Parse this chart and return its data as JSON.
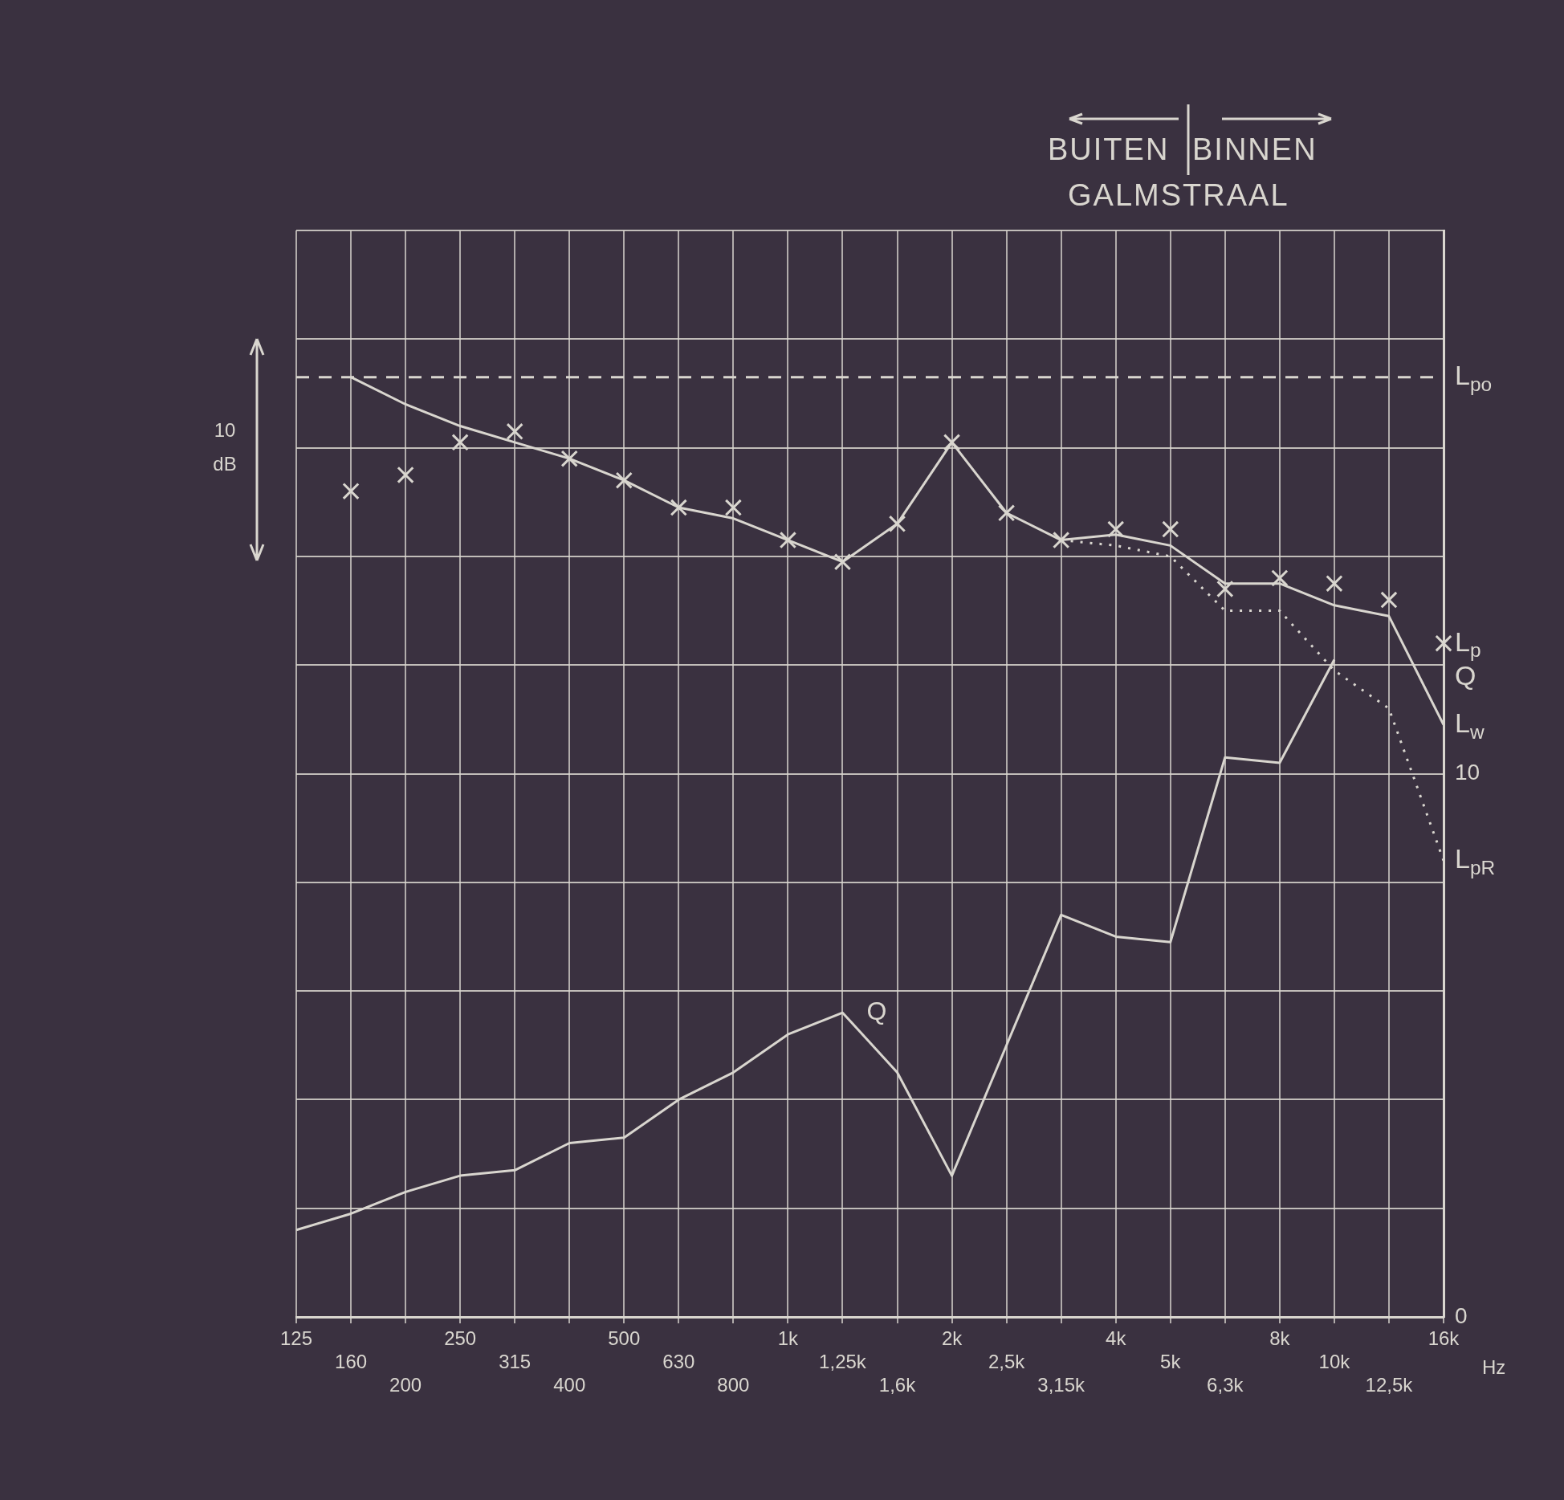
{
  "chart_data": {
    "type": "line",
    "categories": [
      "125",
      "160",
      "200",
      "250",
      "315",
      "400",
      "500",
      "630",
      "800",
      "1k",
      "1,25k",
      "1,6k",
      "2k",
      "2,5k",
      "3,15k",
      "4k",
      "5k",
      "6,3k",
      "8k",
      "10k",
      "12,5k",
      "16k"
    ],
    "xlabel": "Hz",
    "series": [
      {
        "name": "L$_{po}$",
        "type": "line",
        "line_style": "dashed",
        "marker": "none",
        "color": "#d9d6cf",
        "values": [
          17.3,
          17.3,
          17.3,
          17.3,
          17.3,
          17.3,
          17.3,
          17.3,
          17.3,
          17.3,
          17.3,
          17.3,
          17.3,
          17.3,
          17.3,
          17.3,
          17.3,
          17.3,
          17.3,
          17.3,
          17.3,
          17.3
        ]
      },
      {
        "name": "L$_{p}$",
        "type": "scatter",
        "marker": "cross",
        "color": "#d9d6cf",
        "values": [
          null,
          15.2,
          15.5,
          16.1,
          16.3,
          15.8,
          15.4,
          14.9,
          14.9,
          14.3,
          13.9,
          14.6,
          16.1,
          14.8,
          14.3,
          14.5,
          14.5,
          13.4,
          13.6,
          13.5,
          13.2,
          12.4
        ]
      },
      {
        "name": "L$_{w}$",
        "type": "line",
        "line_style": "solid",
        "marker": "none",
        "color": "#d9d6cf",
        "values": [
          null,
          17.3,
          16.8,
          16.4,
          16.1,
          15.8,
          15.4,
          14.9,
          14.7,
          14.3,
          13.9,
          14.6,
          16.1,
          14.8,
          14.3,
          14.4,
          14.2,
          13.5,
          13.5,
          13.1,
          12.9,
          10.9
        ]
      },
      {
        "name": "L$_{pR}$",
        "type": "line",
        "line_style": "dotted",
        "marker": "none",
        "color": "#d9d6cf",
        "values": [
          null,
          null,
          null,
          null,
          null,
          null,
          null,
          null,
          null,
          null,
          null,
          null,
          null,
          null,
          14.3,
          14.2,
          14.0,
          13.0,
          13.0,
          11.9,
          11.2,
          8.4
        ]
      },
      {
        "name": "Q",
        "type": "line",
        "line_style": "solid",
        "marker": "none",
        "color": "#d9d6cf",
        "values": [
          1.6,
          1.9,
          2.3,
          2.6,
          2.7,
          3.2,
          3.3,
          4.0,
          4.5,
          5.2,
          5.6,
          4.5,
          2.6,
          5.0,
          7.4,
          7.0,
          6.9,
          10.3,
          10.2,
          12.1,
          null,
          null
        ]
      }
    ],
    "ylim": [
      0,
      20
    ],
    "yticks": [
      0,
      {
        "value": 2,
        "label": null
      },
      {
        "value": 4,
        "label": null
      },
      {
        "value": 6,
        "label": null
      },
      {
        "value": 8,
        "label": null
      },
      10,
      {
        "value": 12,
        "label": null
      },
      {
        "value": 14,
        "label": null
      },
      {
        "value": 16,
        "label": null
      },
      {
        "value": 18,
        "label": null
      },
      {
        "value": 20,
        "label": null
      }
    ],
    "grid": true,
    "legend": false,
    "annotations": [
      "BUITEN",
      "BINNEN",
      "GALMSTRAAL",
      "10 dB",
      {
        "text": "Q",
        "x": "1,25k",
        "y": 5.6
      }
    ]
  }
}
